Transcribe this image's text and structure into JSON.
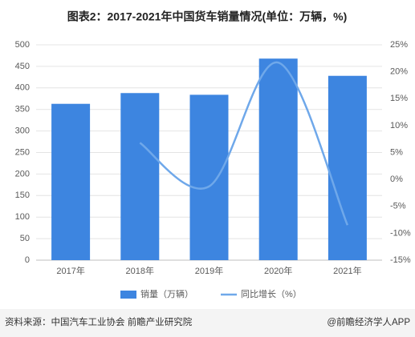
{
  "chart_data": {
    "type": "combo",
    "title": "图表2：2017-2021年中国货车销量情况(单位：万辆，%)",
    "categories": [
      "2017年",
      "2018年",
      "2019年",
      "2020年",
      "2021年"
    ],
    "series": [
      {
        "name": "销量（万辆）",
        "type": "bar",
        "color": "#3d85e0",
        "values": [
          363,
          388,
          384,
          468,
          428
        ]
      },
      {
        "name": "同比增长（%）",
        "type": "line",
        "axis": "y2",
        "color": "#6fa8ea",
        "values": [
          null,
          6.8,
          -1.3,
          21.7,
          -8.5
        ]
      }
    ],
    "ylim": [
      0,
      500
    ],
    "yticks": [
      0,
      50,
      100,
      150,
      200,
      250,
      300,
      350,
      400,
      450,
      500
    ],
    "y2lim": [
      -15,
      25
    ],
    "y2ticks": [
      {
        "value": -15,
        "label": "-15%"
      },
      {
        "value": -10,
        "label": "-10%"
      },
      {
        "value": -5,
        "label": "-5%"
      },
      {
        "value": 0,
        "label": "0%"
      },
      {
        "value": 5,
        "label": "5%"
      },
      {
        "value": 10,
        "label": "10%"
      },
      {
        "value": 15,
        "label": "15%"
      },
      {
        "value": 20,
        "label": "20%"
      },
      {
        "value": 25,
        "label": "25%"
      }
    ],
    "grid": true,
    "source": "资料来源：中国汽车工业协会 前瞻产业研究院",
    "credit": "@前瞻经济学人APP"
  }
}
